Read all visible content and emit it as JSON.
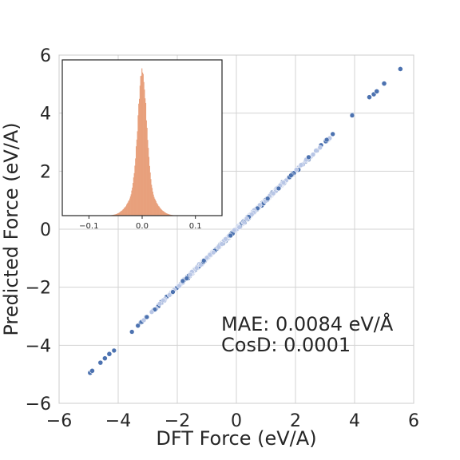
{
  "chart_data": [
    {
      "type": "scatter",
      "xlabel": "DFT Force (eV/A)",
      "ylabel": "Predicted Force (eV/A)",
      "xlim": [
        -6,
        6
      ],
      "ylim": [
        -6,
        6
      ],
      "xticks": [
        "−6",
        "−4",
        "−2",
        "0",
        "2",
        "4",
        "6"
      ],
      "yticks": [
        "−6",
        "−4",
        "−2",
        "0",
        "2",
        "4",
        "6"
      ],
      "grid": true,
      "colors": {
        "points": "#4c72b0",
        "points_dense": "#b8c6e6",
        "grid": "#d3d3d3"
      },
      "annotations": [
        "MAE:   0.0084 eV/Å",
        "CosD:  0.0001"
      ],
      "x_range_of_points": [
        -5.0,
        5.55
      ],
      "notable_points": [
        {
          "x": -4.95,
          "y": -4.95
        },
        {
          "x": -4.88,
          "y": -4.88
        },
        {
          "x": -4.6,
          "y": -4.6
        },
        {
          "x": -4.45,
          "y": -4.45
        },
        {
          "x": -4.3,
          "y": -4.3
        },
        {
          "x": 4.5,
          "y": 4.55
        },
        {
          "x": 4.65,
          "y": 4.65
        },
        {
          "x": 4.75,
          "y": 4.75
        },
        {
          "x": 5.0,
          "y": 5.02
        },
        {
          "x": 5.55,
          "y": 5.52
        }
      ]
    },
    {
      "type": "histogram",
      "position": "inset top-left",
      "xlim": [
        -0.15,
        0.15
      ],
      "xticks": [
        "−0.1",
        "0.0",
        "0.1"
      ],
      "color": "#e8a07c",
      "distribution": {
        "center": 0.0,
        "peak_width": 0.008,
        "tail_width": 0.02
      }
    }
  ]
}
